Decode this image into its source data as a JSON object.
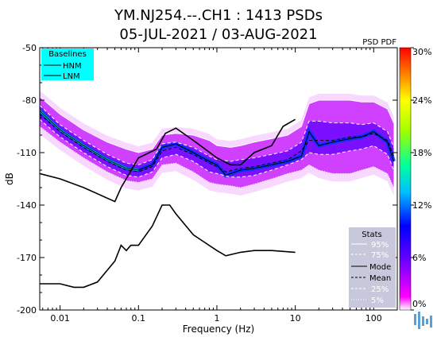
{
  "title_line1": "YM.NJ254.--.CH1 : 1413 PSDs",
  "title_line2": "05-JUL-2021 / 03-AUG-2021",
  "colorbar_label": "PSD PDF",
  "colorbar_ticks": [
    "30%",
    "24%",
    "18%",
    "12%",
    "6%",
    "0%"
  ],
  "colors": {
    "legend_box": "#00ffff",
    "stats_box": "#c8c8dc"
  },
  "baselines": {
    "title": "Baselines",
    "hnm": "HNM",
    "lnm": "LNM"
  },
  "stats": {
    "title": "Stats",
    "p95": "95%",
    "p75": "75%",
    "mode": "Mode",
    "mean": "Mean",
    "p25": "25%",
    "p5": "5%"
  },
  "logo_icon": "waveform-logo-icon",
  "chart_data": {
    "type": "heatmap",
    "title": "YM.NJ254.--.CH1 : 1413 PSDs",
    "subtitle": "05-JUL-2021 / 03-AUG-2021",
    "xlabel": "Frequency (Hz)",
    "ylabel": "dB",
    "xscale": "log",
    "xlim": [
      0.0055,
      200
    ],
    "ylim": [
      -200,
      -50
    ],
    "xticks": [
      0.01,
      0.1,
      1,
      10,
      100
    ],
    "xtick_labels": [
      "0.01",
      "0.1",
      "1",
      "10",
      "100"
    ],
    "yticks": [
      -50,
      -80,
      -110,
      -140,
      -170,
      -200
    ],
    "ytick_labels": [
      "-50",
      "-80",
      "-110",
      "-140",
      "-170",
      "-200"
    ],
    "colorbar": {
      "label": "PSD PDF",
      "range_percent": [
        0,
        30
      ]
    },
    "series": [
      {
        "name": "HNM",
        "x": [
          0.0055,
          0.01,
          0.02,
          0.05,
          0.06,
          0.1,
          0.17,
          0.22,
          0.3,
          0.5,
          1,
          1.5,
          2,
          3,
          5,
          7,
          10
        ],
        "y": [
          -122,
          -125,
          -130,
          -138,
          -130,
          -113,
          -108,
          -99,
          -96,
          -103,
          -113,
          -117,
          -117,
          -110,
          -106,
          -95,
          -91
        ]
      },
      {
        "name": "LNM",
        "x": [
          0.0055,
          0.01,
          0.015,
          0.02,
          0.03,
          0.05,
          0.06,
          0.07,
          0.08,
          0.1,
          0.15,
          0.2,
          0.25,
          0.3,
          0.5,
          1,
          1.3,
          2,
          3,
          5,
          10
        ],
        "y": [
          -185,
          -185,
          -187,
          -187,
          -184,
          -172,
          -163,
          -166,
          -163,
          -163,
          -152,
          -140,
          -140,
          -145,
          -157,
          -166,
          -169,
          -167,
          -166,
          -166,
          -167
        ]
      },
      {
        "name": "Mode",
        "x": [
          0.0055,
          0.01,
          0.02,
          0.04,
          0.07,
          0.1,
          0.15,
          0.2,
          0.3,
          0.5,
          0.8,
          1,
          1.3,
          2,
          3,
          5,
          8,
          12,
          15,
          20,
          30,
          50,
          70,
          100,
          150,
          180
        ],
        "y": [
          -86,
          -97,
          -106,
          -114,
          -119,
          -120,
          -117,
          -107,
          -105,
          -110,
          -115,
          -117,
          -123,
          -120,
          -119,
          -117,
          -115,
          -112,
          -98,
          -106,
          -104,
          -102,
          -101,
          -98,
          -104,
          -115
        ]
      },
      {
        "name": "Mean",
        "x": [
          0.0055,
          0.01,
          0.02,
          0.04,
          0.07,
          0.1,
          0.15,
          0.2,
          0.3,
          0.5,
          0.8,
          1,
          1.3,
          2,
          3,
          5,
          8,
          12,
          15,
          20,
          30,
          50,
          70,
          100,
          150,
          180
        ],
        "y": [
          -88,
          -98,
          -107,
          -115,
          -120,
          -121,
          -118,
          -109,
          -107,
          -111,
          -116,
          -118,
          -121,
          -119,
          -118,
          -116,
          -114,
          -109,
          -103,
          -103,
          -103,
          -101,
          -101,
          -99,
          -103,
          -112
        ]
      },
      {
        "name": "95%",
        "x": [
          0.0055,
          0.01,
          0.02,
          0.04,
          0.07,
          0.1,
          0.15,
          0.2,
          0.3,
          0.5,
          0.8,
          1,
          1.5,
          2,
          3,
          5,
          8,
          12,
          15,
          20,
          30,
          50,
          70,
          100,
          150,
          180
        ],
        "y": [
          -78,
          -88,
          -97,
          -104,
          -108,
          -110,
          -108,
          -100,
          -99,
          -100,
          -103,
          -106,
          -107,
          -106,
          -104,
          -102,
          -100,
          -95,
          -82,
          -80,
          -80,
          -80,
          -81,
          -81,
          -85,
          -93
        ]
      },
      {
        "name": "75%",
        "x": [
          0.0055,
          0.01,
          0.02,
          0.04,
          0.07,
          0.1,
          0.15,
          0.2,
          0.3,
          0.5,
          0.8,
          1,
          1.5,
          2,
          3,
          5,
          8,
          12,
          15,
          20,
          30,
          50,
          70,
          100,
          150,
          180
        ],
        "y": [
          -83,
          -94,
          -103,
          -111,
          -116,
          -117,
          -114,
          -105,
          -104,
          -107,
          -112,
          -114,
          -115,
          -114,
          -113,
          -111,
          -109,
          -104,
          -92,
          -92,
          -93,
          -93,
          -94,
          -93,
          -98,
          -107
        ]
      },
      {
        "name": "25%",
        "x": [
          0.0055,
          0.01,
          0.02,
          0.04,
          0.07,
          0.1,
          0.15,
          0.2,
          0.3,
          0.5,
          0.8,
          1,
          1.5,
          2,
          3,
          5,
          8,
          12,
          15,
          20,
          30,
          50,
          70,
          100,
          150,
          180
        ],
        "y": [
          -91,
          -101,
          -110,
          -118,
          -123,
          -124,
          -121,
          -113,
          -111,
          -115,
          -121,
          -122,
          -124,
          -124,
          -123,
          -120,
          -117,
          -114,
          -110,
          -111,
          -111,
          -109,
          -108,
          -106,
          -111,
          -120
        ]
      },
      {
        "name": "5%",
        "x": [
          0.0055,
          0.01,
          0.02,
          0.04,
          0.07,
          0.1,
          0.15,
          0.2,
          0.3,
          0.5,
          0.8,
          1,
          1.5,
          2,
          3,
          5,
          8,
          12,
          15,
          20,
          30,
          50,
          70,
          100,
          150,
          180
        ],
        "y": [
          -95,
          -104,
          -113,
          -121,
          -126,
          -127,
          -125,
          -117,
          -116,
          -121,
          -127,
          -128,
          -129,
          -130,
          -128,
          -125,
          -122,
          -120,
          -117,
          -120,
          -122,
          -122,
          -120,
          -118,
          -122,
          -130
        ]
      }
    ]
  }
}
